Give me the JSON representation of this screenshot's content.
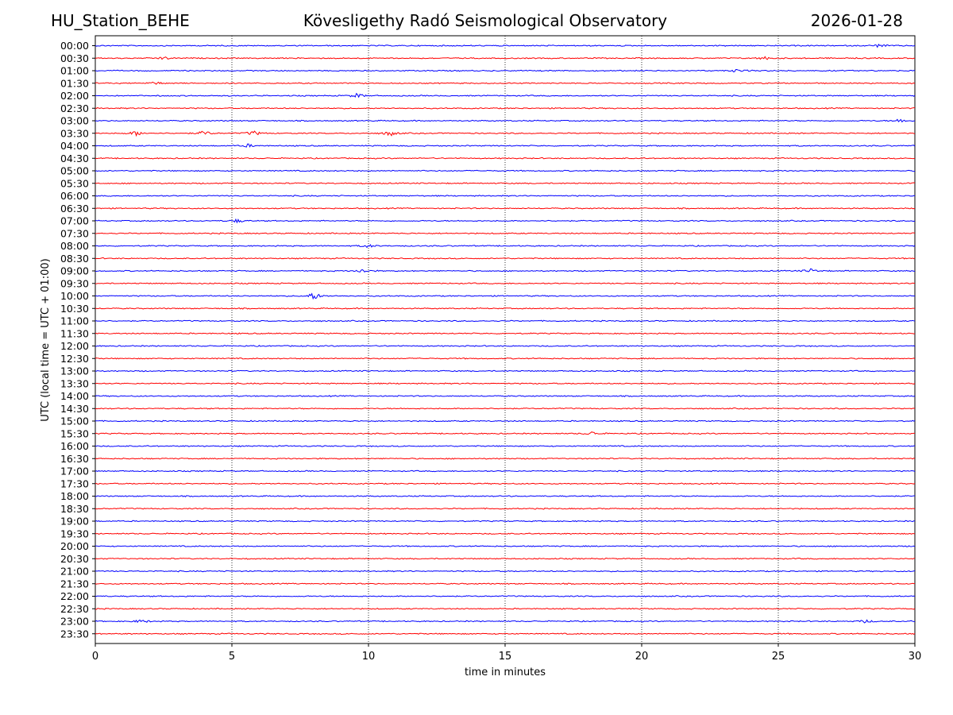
{
  "header": {
    "station": "HU_Station_BEHE",
    "title": "Kövesligethy Radó Seismological Observatory",
    "date": "2026-01-28"
  },
  "chart_data": {
    "type": "line",
    "title": "Kövesligethy Radó Seismological Observatory",
    "xlabel": "time in minutes",
    "ylabel": "UTC (local time = UTC + 01:00)",
    "xlim": [
      0,
      30
    ],
    "x_ticks": [
      0,
      5,
      10,
      15,
      20,
      25,
      30
    ],
    "grid": "vertical dotted at x ticks",
    "series_colors": [
      "#0000ff",
      "#ff0000"
    ],
    "rows": [
      "00:00",
      "00:30",
      "01:00",
      "01:30",
      "02:00",
      "02:30",
      "03:00",
      "03:30",
      "04:00",
      "04:30",
      "05:00",
      "05:30",
      "06:00",
      "06:30",
      "07:00",
      "07:30",
      "08:00",
      "08:30",
      "09:00",
      "09:30",
      "10:00",
      "10:30",
      "11:00",
      "11:30",
      "12:00",
      "12:30",
      "13:00",
      "13:30",
      "14:00",
      "14:30",
      "15:00",
      "15:30",
      "16:00",
      "16:30",
      "17:00",
      "17:30",
      "18:00",
      "18:30",
      "19:00",
      "19:30",
      "20:00",
      "20:30",
      "21:00",
      "21:30",
      "22:00",
      "22:30",
      "23:00",
      "23:30"
    ],
    "noise_amplitude": 0.6,
    "events": [
      {
        "row": "00:00",
        "minute": 28.7,
        "amp": 2.2
      },
      {
        "row": "00:30",
        "minute": 2.5,
        "amp": 1.8
      },
      {
        "row": "00:30",
        "minute": 24.5,
        "amp": 2.0
      },
      {
        "row": "01:00",
        "minute": 23.5,
        "amp": 2.0
      },
      {
        "row": "01:30",
        "minute": 2.2,
        "amp": 1.8
      },
      {
        "row": "02:00",
        "minute": 9.6,
        "amp": 3.0
      },
      {
        "row": "03:00",
        "minute": 29.5,
        "amp": 2.6
      },
      {
        "row": "03:30",
        "minute": 1.5,
        "amp": 3.0
      },
      {
        "row": "03:30",
        "minute": 4.0,
        "amp": 3.2
      },
      {
        "row": "03:30",
        "minute": 5.8,
        "amp": 3.0
      },
      {
        "row": "03:30",
        "minute": 10.8,
        "amp": 3.5
      },
      {
        "row": "04:00",
        "minute": 5.6,
        "amp": 2.0
      },
      {
        "row": "07:00",
        "minute": 5.2,
        "amp": 2.2
      },
      {
        "row": "08:00",
        "minute": 10.0,
        "amp": 2.2
      },
      {
        "row": "09:00",
        "minute": 9.8,
        "amp": 2.8
      },
      {
        "row": "09:00",
        "minute": 26.2,
        "amp": 2.6
      },
      {
        "row": "10:00",
        "minute": 8.0,
        "amp": 5.0
      },
      {
        "row": "15:30",
        "minute": 18.2,
        "amp": 2.5
      },
      {
        "row": "23:00",
        "minute": 1.7,
        "amp": 2.2
      },
      {
        "row": "23:00",
        "minute": 28.2,
        "amp": 2.0
      }
    ]
  }
}
